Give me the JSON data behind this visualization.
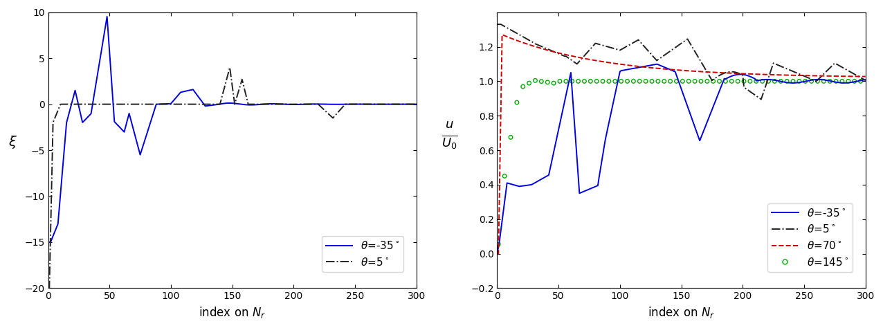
{
  "xlim": [
    0,
    300
  ],
  "ylim_left": [
    -20,
    10
  ],
  "ylim_right": [
    -0.2,
    1.4
  ],
  "yticks_left": [
    -20,
    -15,
    -10,
    -5,
    0,
    5,
    10
  ],
  "yticks_right": [
    -0.2,
    0.0,
    0.2,
    0.4,
    0.6,
    0.8,
    1.0,
    1.2
  ],
  "xticks": [
    0,
    50,
    100,
    150,
    200,
    250,
    300
  ],
  "blue_color": "#0000dd",
  "black_color": "#222222",
  "red_color": "#cc0000",
  "green_color": "#00aa00",
  "lw": 1.4,
  "bg": "#ffffff"
}
